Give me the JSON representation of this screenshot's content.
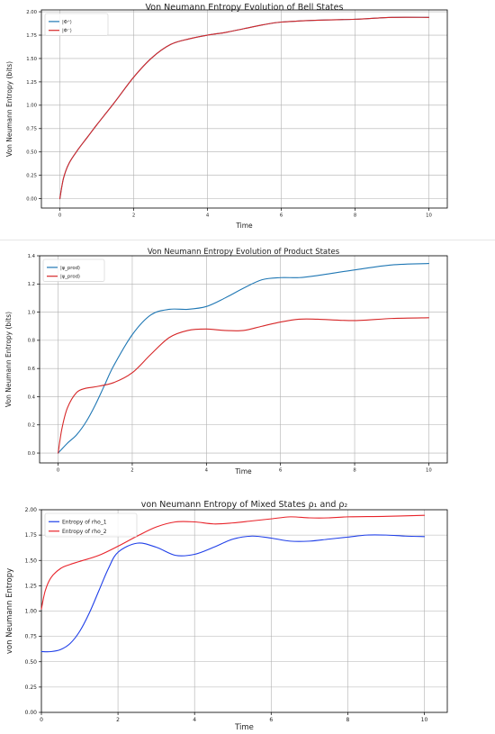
{
  "chart_data": [
    {
      "type": "line",
      "title": "Von Neumann Entropy Evolution of Bell States",
      "xlabel": "Time",
      "ylabel": "Von Neumann Entropy (bits)",
      "xlim": [
        -0.5,
        10.5
      ],
      "ylim": [
        -0.1,
        2.02
      ],
      "xticks": [
        0,
        2,
        4,
        6,
        8,
        10
      ],
      "xtick_labels": [
        "0",
        "2",
        "4",
        "6",
        "8",
        "10"
      ],
      "yticks": [
        0,
        0.25,
        0.5,
        0.75,
        1.0,
        1.25,
        1.5,
        1.75,
        2.0
      ],
      "ytick_labels": [
        "0.00",
        "0.25",
        "0.50",
        "0.75",
        "1.00",
        "1.25",
        "1.50",
        "1.75",
        "2.00"
      ],
      "grid": true,
      "legend_position": "top-left",
      "series": [
        {
          "name": "|Φ⁺⟩",
          "color": "#1f77b4",
          "x": [
            0,
            0.1,
            0.25,
            0.5,
            0.75,
            1,
            1.5,
            2,
            2.5,
            3,
            3.5,
            4,
            4.5,
            5,
            5.5,
            6,
            7,
            8,
            9,
            10
          ],
          "y": [
            0,
            0.22,
            0.38,
            0.53,
            0.66,
            0.79,
            1.04,
            1.3,
            1.51,
            1.65,
            1.71,
            1.75,
            1.78,
            1.82,
            1.86,
            1.89,
            1.91,
            1.92,
            1.94,
            1.94
          ]
        },
        {
          "name": "|Φ⁻⟩",
          "color": "#d62728",
          "x": [
            0,
            0.1,
            0.25,
            0.5,
            0.75,
            1,
            1.5,
            2,
            2.5,
            3,
            3.5,
            4,
            4.5,
            5,
            5.5,
            6,
            7,
            8,
            9,
            10
          ],
          "y": [
            0,
            0.22,
            0.38,
            0.53,
            0.66,
            0.79,
            1.04,
            1.3,
            1.51,
            1.65,
            1.71,
            1.75,
            1.78,
            1.82,
            1.86,
            1.89,
            1.91,
            1.92,
            1.94,
            1.94
          ]
        }
      ]
    },
    {
      "type": "line",
      "title": "Von Neumann Entropy Evolution of Product States",
      "xlabel": "Time",
      "ylabel": "Von Neumann Entropy (bits)",
      "xlim": [
        -0.5,
        10.5
      ],
      "ylim": [
        -0.07,
        1.4
      ],
      "xticks": [
        0,
        2,
        4,
        6,
        8,
        10
      ],
      "xtick_labels": [
        "0",
        "2",
        "4",
        "6",
        "8",
        "10"
      ],
      "yticks": [
        0,
        0.2,
        0.4,
        0.6,
        0.8,
        1.0,
        1.2,
        1.4
      ],
      "ytick_labels": [
        "0.0",
        "0.2",
        "0.4",
        "0.6",
        "0.8",
        "1.0",
        "1.2",
        "1.4"
      ],
      "grid": true,
      "legend_position": "top-left",
      "series": [
        {
          "name": "|ψ_prod⟩",
          "color": "#1f77b4",
          "x": [
            0,
            0.25,
            0.5,
            0.75,
            1,
            1.25,
            1.5,
            2,
            2.5,
            3,
            3.5,
            4,
            4.5,
            5,
            5.5,
            6,
            6.5,
            7,
            8,
            9,
            10
          ],
          "y": [
            0,
            0.07,
            0.13,
            0.22,
            0.34,
            0.48,
            0.62,
            0.84,
            0.98,
            1.02,
            1.02,
            1.04,
            1.1,
            1.17,
            1.23,
            1.245,
            1.245,
            1.26,
            1.3,
            1.335,
            1.345
          ]
        },
        {
          "name": "|ψ_prod⟩",
          "color": "#d62728",
          "x": [
            0,
            0.1,
            0.25,
            0.5,
            0.75,
            1,
            1.5,
            2,
            2.5,
            3,
            3.5,
            4,
            4.5,
            5,
            5.5,
            6,
            6.5,
            7,
            8,
            9,
            10
          ],
          "y": [
            0,
            0.17,
            0.32,
            0.43,
            0.46,
            0.47,
            0.5,
            0.57,
            0.7,
            0.82,
            0.87,
            0.88,
            0.87,
            0.87,
            0.9,
            0.93,
            0.95,
            0.95,
            0.94,
            0.955,
            0.96
          ]
        }
      ]
    },
    {
      "type": "line",
      "title": "von Neumann Entropy of Mixed States ρ₁ and ρ₂",
      "xlabel": "Time",
      "ylabel": "von Neumann Entropy",
      "xlim": [
        0,
        10.6
      ],
      "ylim": [
        0,
        2.0
      ],
      "xticks": [
        0,
        2,
        4,
        6,
        8,
        10
      ],
      "xtick_labels": [
        "0",
        "2",
        "4",
        "6",
        "8",
        "10"
      ],
      "yticks": [
        0,
        0.25,
        0.5,
        0.75,
        1.0,
        1.25,
        1.5,
        1.75,
        2.0
      ],
      "ytick_labels": [
        "0.00",
        "0.25",
        "0.50",
        "0.75",
        "1.00",
        "1.25",
        "1.50",
        "1.75",
        "2.00"
      ],
      "grid": true,
      "legend_position": "top-left",
      "series": [
        {
          "name": "Entropy of rho_1",
          "color": "#1f3fe8",
          "x": [
            0,
            0.25,
            0.5,
            0.75,
            1,
            1.25,
            1.5,
            1.75,
            2,
            2.5,
            3,
            3.5,
            4,
            4.5,
            5,
            5.5,
            6,
            6.5,
            7,
            7.5,
            8,
            8.5,
            9,
            9.5,
            10
          ],
          "y": [
            0.6,
            0.6,
            0.62,
            0.68,
            0.8,
            0.98,
            1.2,
            1.42,
            1.58,
            1.67,
            1.63,
            1.55,
            1.56,
            1.63,
            1.71,
            1.74,
            1.72,
            1.69,
            1.69,
            1.71,
            1.73,
            1.75,
            1.75,
            1.74,
            1.735
          ]
        },
        {
          "name": "Entropy of rho_2",
          "color": "#e8232a",
          "x": [
            0,
            0.1,
            0.25,
            0.5,
            0.75,
            1,
            1.5,
            2,
            2.5,
            3,
            3.5,
            4,
            4.5,
            5,
            5.5,
            6,
            6.5,
            7,
            7.5,
            8,
            9,
            10
          ],
          "y": [
            1.02,
            1.2,
            1.33,
            1.42,
            1.46,
            1.49,
            1.55,
            1.64,
            1.74,
            1.83,
            1.88,
            1.88,
            1.86,
            1.87,
            1.89,
            1.91,
            1.93,
            1.92,
            1.92,
            1.93,
            1.935,
            1.945
          ]
        }
      ]
    }
  ]
}
